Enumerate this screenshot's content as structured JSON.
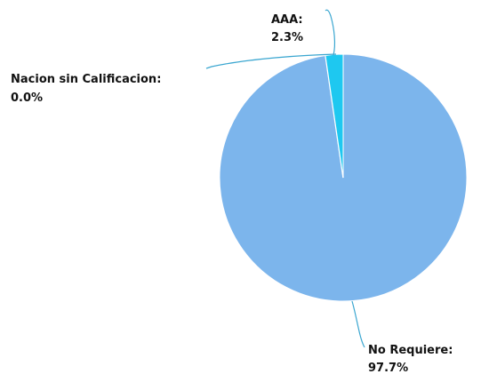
{
  "chart_data": {
    "type": "pie",
    "slices": [
      {
        "name": "No Requiere",
        "label": "No Requiere:",
        "value": 97.7,
        "value_label": "97.7%",
        "color": "#7cb5ec"
      },
      {
        "name": "Nacion sin Calificacion",
        "label": "Nacion sin Calificacion:",
        "value": 0.0,
        "value_label": "0.0%",
        "color": "#7cb5ec"
      },
      {
        "name": "AAA",
        "label": "AAA:",
        "value": 2.3,
        "value_label": "2.3%",
        "color": "#1ec8f0"
      }
    ],
    "connector_color": "#3aa6d0",
    "slice_border_color": "#ffffff"
  }
}
